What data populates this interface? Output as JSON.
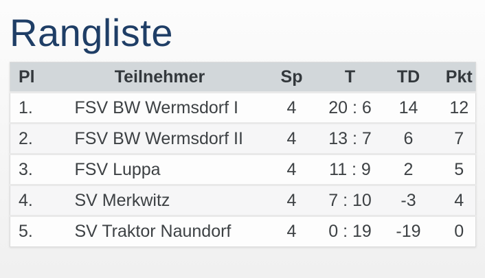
{
  "page": {
    "title": "Rangliste"
  },
  "table": {
    "columns": {
      "pl": "Pl",
      "teilnehmer": "Teilnehmer",
      "sp": "Sp",
      "t": "T",
      "td": "TD",
      "pkt": "Pkt"
    },
    "rows": [
      {
        "pl": "1.",
        "teilnehmer": "FSV BW Wermsdorf I",
        "sp": "4",
        "t": "20 : 6",
        "td": "14",
        "pkt": "12"
      },
      {
        "pl": "2.",
        "teilnehmer": "FSV BW Wermsdorf II",
        "sp": "4",
        "t": "13 : 7",
        "td": "6",
        "pkt": "7"
      },
      {
        "pl": "3.",
        "teilnehmer": "FSV Luppa",
        "sp": "4",
        "t": "11 : 9",
        "td": "2",
        "pkt": "5"
      },
      {
        "pl": "4.",
        "teilnehmer": "SV Merkwitz",
        "sp": "4",
        "t": "7 : 10",
        "td": "-3",
        "pkt": "4"
      },
      {
        "pl": "5.",
        "teilnehmer": "SV Traktor Naundorf",
        "sp": "4",
        "t": "0 : 19",
        "td": "-19",
        "pkt": "0"
      }
    ]
  },
  "colors": {
    "title": "#1f3e66",
    "header_bg": "#d2d7da",
    "header_text": "#33383c",
    "body_text": "#3d4144",
    "row_bg": "#fdfdfd",
    "row_alt_bg": "#f6f6f7",
    "separator": "#e9e9e9",
    "table_border": "#dcdcdc"
  }
}
